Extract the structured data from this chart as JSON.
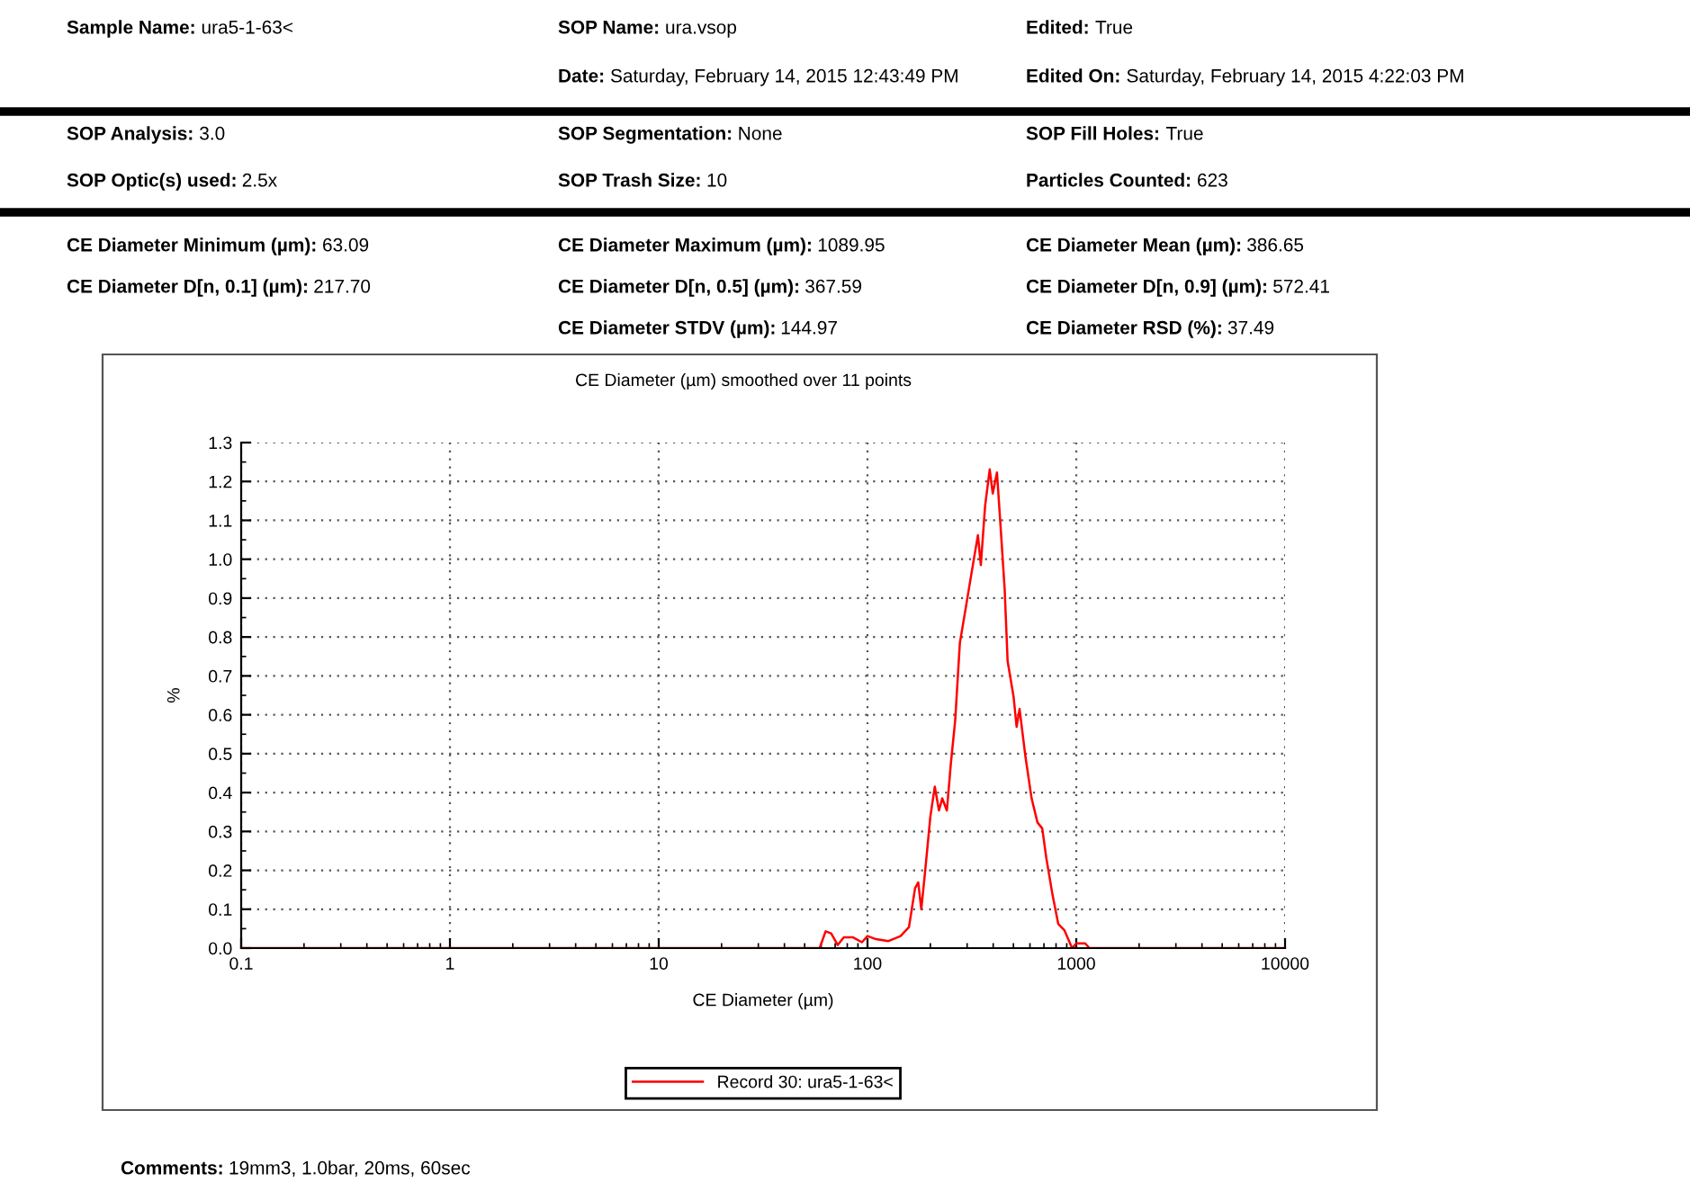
{
  "chart_data": {
    "type": "line",
    "title": "CE Diameter (µm) smoothed over 11 points",
    "xlabel": "CE Diameter (µm)",
    "ylabel": "%",
    "log": "x",
    "xlim": [
      0.1,
      10000
    ],
    "xticks": [
      0.1,
      1,
      10,
      100,
      1000,
      10000
    ],
    "ylim": [
      0.0,
      1.3
    ],
    "yticks": [
      {
        "value": 0,
        "label": "0.0"
      },
      0.1,
      0.2,
      0.3,
      0.4,
      0.5,
      0.6,
      0.7,
      0.8,
      0.9,
      {
        "value": 1,
        "label": "1.0"
      },
      1.1,
      1.2,
      1.3
    ],
    "grid": true,
    "legend": "bottom",
    "line_style": "solid",
    "marker": "none",
    "series": [
      {
        "name": "Record 30: ura5-1-63<",
        "color": "#ff0000",
        "x": [
          0.1,
          59,
          63,
          67,
          72,
          77,
          85,
          94,
          100,
          110,
          126,
          144,
          158,
          169,
          175,
          181,
          189,
          200,
          210,
          220,
          228,
          240,
          251,
          263,
          277,
          296,
          316,
          338,
          349,
          366,
          385,
          398,
          417,
          433,
          454,
          469,
          501,
          518,
          535,
          571,
          611,
          652,
          687,
          719,
          769,
          820,
          877,
          955,
          1000,
          1104,
          1157,
          10000
        ],
        "values": [
          0,
          0,
          0.043,
          0.038,
          0.008,
          0.028,
          0.028,
          0.015,
          0.031,
          0.023,
          0.018,
          0.031,
          0.054,
          0.154,
          0.169,
          0.1,
          0.2,
          0.338,
          0.415,
          0.354,
          0.385,
          0.354,
          0.477,
          0.585,
          0.785,
          0.877,
          0.969,
          1.062,
          0.985,
          1.138,
          1.231,
          1.169,
          1.223,
          1.092,
          0.923,
          0.738,
          0.646,
          0.569,
          0.615,
          0.492,
          0.385,
          0.323,
          0.308,
          0.231,
          0.138,
          0.062,
          0.046,
          0,
          0.012,
          0.012,
          0,
          0
        ]
      }
    ],
    "annotations": [
      "Sample Name: ura5-1-63<",
      "SOP Name: ura.vsop",
      "Edited: True",
      "Date: Saturday, February 14, 2015 12:43:49 PM",
      "Edited On: Saturday, February 14, 2015 4:22:03 PM",
      "SOP Analysis: 3.0",
      "SOP Segmentation: None",
      "SOP Fill Holes: True",
      "SOP Optic(s) used: 2.5x",
      "SOP Trash Size: 10",
      "Particles Counted: 623",
      "CE Diameter Minimum (µm): 63.09",
      "CE Diameter Maximum (µm): 1089.95",
      "CE Diameter Mean (µm): 386.65",
      "CE Diameter D[n, 0.1] (µm): 217.70",
      "CE Diameter D[n, 0.5] (µm): 367.59",
      "CE Diameter D[n, 0.9] (µm): 572.41",
      "CE Diameter STDV (µm): 144.97",
      "CE Diameter RSD (%): 37.49",
      "Comments: 19mm3, 1.0bar, 20ms, 60sec"
    ]
  }
}
